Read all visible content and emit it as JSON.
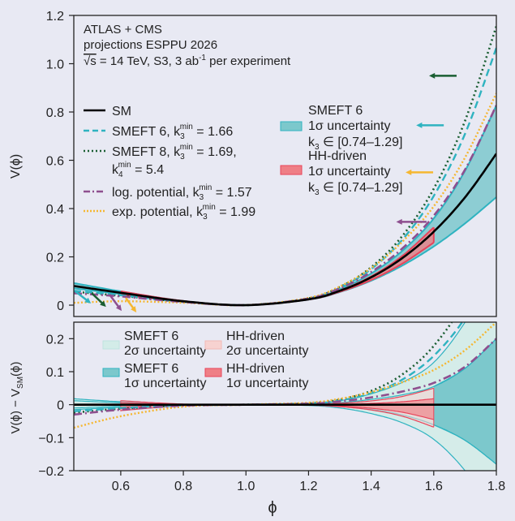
{
  "colors": {
    "background": "#e8e9f3",
    "sm": "#000000",
    "smeft6": "#2fb3c0",
    "smeft8": "#1a5e32",
    "log": "#8e4f8f",
    "exp": "#f5b731",
    "teal_band_1s": "#7cc8cc",
    "teal_band_2s": "#d3ece8",
    "hh_line": "#e8445a",
    "hh_band_1s": "#ef7f86",
    "hh_band_2s": "#f7d2d0"
  },
  "header": {
    "line1": "ATLAS + CMS",
    "line2": "projections ESPPU 2026",
    "line3_sqrt": "√s",
    "line3_a": " = 14 TeV, S3, 3 ab",
    "line3_sup": "-1",
    "line3_b": " per experiment"
  },
  "legend_top": {
    "sm": "SM",
    "smeft6": {
      "a": "SMEFT 6, k",
      "sub": "3",
      "sup": "min",
      "b": " = 1.66"
    },
    "smeft8": {
      "a": "SMEFT 8, k",
      "sub": "3",
      "sup": "min",
      "b": " = 1.69,",
      "a2": "k",
      "sub2": "4",
      "sup2": "min",
      "b2": " = 5.4"
    },
    "log": {
      "a": "log. potential, k",
      "sub": "3",
      "sup": "min",
      "b": " = 1.57"
    },
    "exp": {
      "a": "exp. potential, k",
      "sub": "3",
      "sup": "min",
      "b": " = 1.99"
    },
    "band_smeft": {
      "l1": "SMEFT 6",
      "l2": "1σ uncertainty",
      "k": "k",
      "sub": "3",
      "range": " ∈ [0.74–1.29]"
    },
    "band_hh": {
      "l1": "HH-driven",
      "l2": "1σ uncertainty",
      "k": "k",
      "sub": "3",
      "range": " ∈ [0.74–1.29]"
    }
  },
  "legend_bottom": {
    "smeft_2s": {
      "l1": "SMEFT 6",
      "l2": "2σ uncertainty"
    },
    "smeft_1s": {
      "l1": "SMEFT 6",
      "l2": "1σ uncertainty"
    },
    "hh_2s": {
      "l1": "HH-driven",
      "l2": "2σ uncertainty"
    },
    "hh_1s": {
      "l1": "HH-driven",
      "l2": "1σ uncertainty"
    }
  },
  "chart_data": [
    {
      "type": "line",
      "panel": "top",
      "ylabel": "V(ϕ)",
      "xlim": [
        0.45,
        1.8
      ],
      "ylim": [
        -0.047,
        1.2
      ],
      "yticks": [
        "0",
        "0.2",
        "0.4",
        "0.6",
        "0.8",
        "1.0",
        "1.2"
      ],
      "ytick_values": [
        0,
        0.2,
        0.4,
        0.6,
        0.8,
        1.0,
        1.2
      ],
      "x": [
        0.45,
        0.6,
        0.8,
        1.0,
        1.2,
        1.3,
        1.4,
        1.5,
        1.6,
        1.7,
        1.8
      ],
      "sm": [
        0.0795,
        0.0512,
        0.0162,
        0,
        0.0242,
        0.0595,
        0.1152,
        0.1953,
        0.3042,
        0.4465,
        0.6272
      ],
      "note_values": "other curves = SM + deviation from lower panel",
      "arrows": [
        {
          "series": "smeft8",
          "from": [
            1.673,
            0.95
          ],
          "to": [
            1.585,
            0.95
          ]
        },
        {
          "series": "smeft6",
          "from": [
            1.632,
            0.745
          ],
          "to": [
            1.544,
            0.745
          ]
        },
        {
          "series": "exp",
          "from": [
            1.598,
            0.55
          ],
          "to": [
            1.51,
            0.55
          ]
        },
        {
          "series": "log",
          "from": [
            1.577,
            0.345
          ],
          "to": [
            1.48,
            0.345
          ]
        },
        {
          "series": "smeft6",
          "from": [
            0.455,
            0.057
          ],
          "to": [
            0.505,
            0.007
          ]
        },
        {
          "series": "smeft8",
          "from": [
            0.507,
            0.05
          ],
          "to": [
            0.553,
            -0.007
          ]
        },
        {
          "series": "log",
          "from": [
            0.564,
            0.044
          ],
          "to": [
            0.603,
            -0.024
          ]
        },
        {
          "series": "exp",
          "from": [
            0.616,
            0.03
          ],
          "to": [
            0.65,
            -0.03
          ]
        }
      ]
    },
    {
      "type": "line",
      "panel": "bottom",
      "xlabel": "ϕ",
      "ylabel_a": "V(ϕ) − V",
      "ylabel_sub": "SM",
      "ylabel_b": "(ϕ)",
      "xlim": [
        0.45,
        1.8
      ],
      "ylim": [
        -0.2,
        0.25
      ],
      "xticks": [
        "0.6",
        "0.8",
        "1.0",
        "1.2",
        "1.4",
        "1.6",
        "1.8"
      ],
      "xtick_values": [
        0.6,
        0.8,
        1.0,
        1.2,
        1.4,
        1.6,
        1.8
      ],
      "yticks": [
        "0.2",
        "0.1",
        "0",
        "−0.1",
        "−0.2"
      ],
      "ytick_values": [
        0.2,
        0.1,
        0,
        -0.1,
        -0.2
      ],
      "x": [
        0.45,
        0.6,
        0.8,
        1.0,
        1.2,
        1.3,
        1.4,
        1.5,
        1.6,
        1.7,
        1.8
      ],
      "series": {
        "smeft6": [
          -0.0198,
          -0.0102,
          -0.0018,
          0,
          0.0033,
          0.0128,
          0.0345,
          0.0762,
          0.148,
          0.263,
          0.438
        ],
        "smeft8": [
          -0.0238,
          -0.0123,
          -0.0022,
          0,
          0.004,
          0.0154,
          0.0416,
          0.0918,
          0.178,
          0.317,
          0.528
        ],
        "log": [
          -0.03,
          -0.015,
          -0.003,
          0,
          0.003,
          0.01,
          0.022,
          0.04,
          0.066,
          0.115,
          0.2
        ],
        "exp": [
          -0.07,
          -0.035,
          -0.006,
          0,
          0.006,
          0.018,
          0.038,
          0.068,
          0.105,
          0.165,
          0.25
        ]
      },
      "smeft_band_1s": {
        "upper": [
          0.012,
          0.006,
          0.001,
          0,
          0.0015,
          0.006,
          0.016,
          0.03,
          0.055,
          0.11,
          0.2
        ],
        "lower": [
          -0.01,
          -0.005,
          -0.001,
          0,
          -0.0014,
          -0.0053,
          -0.014,
          -0.031,
          -0.061,
          -0.108,
          -0.18
        ]
      },
      "smeft_band_2s": {
        "upper": [
          0.018,
          0.009,
          0.0015,
          0,
          0.0032,
          0.012,
          0.033,
          0.068,
          0.128,
          0.25,
          0.42
        ],
        "lower": [
          -0.015,
          -0.008,
          -0.0013,
          0,
          -0.0026,
          -0.01,
          -0.027,
          -0.055,
          -0.105,
          -0.2,
          -0.34
        ]
      },
      "hh_x": [
        0.6,
        0.8,
        1.0,
        1.2,
        1.3,
        1.4,
        1.5,
        1.6
      ],
      "hh_band_1s": {
        "upper": [
          0.006,
          0.001,
          0,
          0.0004,
          0.0015,
          0.004,
          0.009,
          0.018
        ],
        "lower": [
          -0.008,
          -0.001,
          0,
          -0.001,
          -0.004,
          -0.011,
          -0.023,
          -0.045
        ]
      },
      "hh_band_2s": {
        "upper": [
          0.012,
          0.002,
          0,
          0.0011,
          0.0043,
          0.0115,
          0.025,
          0.05
        ],
        "lower": [
          -0.018,
          -0.003,
          0,
          -0.0015,
          -0.006,
          -0.016,
          -0.035,
          -0.068
        ]
      }
    }
  ]
}
